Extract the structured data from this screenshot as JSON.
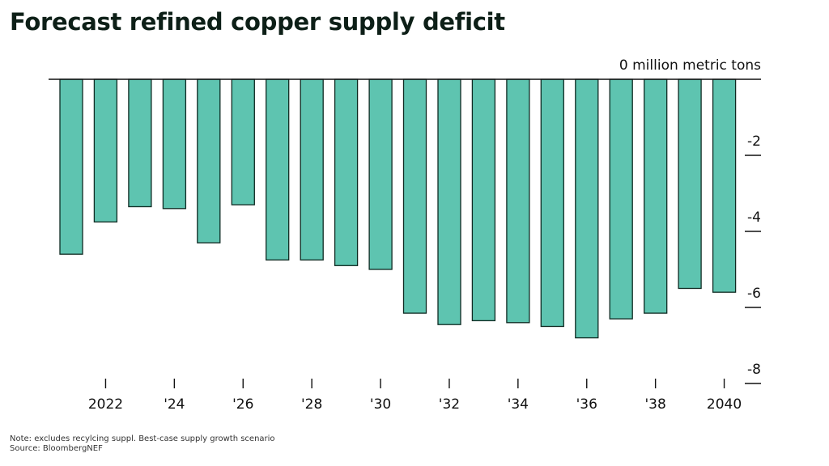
{
  "title": "Forecast refined copper supply deficit",
  "note": "Note: excludes recylcing suppl. Best-case supply growth scenario",
  "source": "Source: BloombergNEF",
  "colors": {
    "bar_fill": "#5ec4b0",
    "bar_stroke": "#0f2a22",
    "axis": "#111111",
    "text": "#111111"
  },
  "chart_data": {
    "type": "bar",
    "title": "Forecast refined copper supply deficit",
    "unit_label": "0 million metric tons",
    "categories": [
      "2021",
      "2022",
      "2023",
      "2024",
      "2025",
      "2026",
      "2027",
      "2028",
      "2029",
      "2030",
      "2031",
      "2032",
      "2033",
      "2034",
      "2035",
      "2036",
      "2037",
      "2038",
      "2039",
      "2040"
    ],
    "values": [
      -4.6,
      -3.75,
      -3.35,
      -3.4,
      -4.3,
      -3.3,
      -4.75,
      -4.75,
      -4.9,
      -5.0,
      -6.15,
      -6.45,
      -6.35,
      -6.4,
      -6.5,
      -6.8,
      -6.3,
      -6.15,
      -5.5,
      -5.6
    ],
    "ylim": [
      -8,
      0
    ],
    "y_ticks": [
      {
        "value": -2,
        "label": "-2"
      },
      {
        "value": -4,
        "label": "-4"
      },
      {
        "value": -6,
        "label": "-6"
      },
      {
        "value": -8,
        "label": "-8"
      }
    ],
    "x_ticks": [
      {
        "category": "2022",
        "label": "2022"
      },
      {
        "category": "2024",
        "label": "'24"
      },
      {
        "category": "2026",
        "label": "'26"
      },
      {
        "category": "2028",
        "label": "'28"
      },
      {
        "category": "2030",
        "label": "'30"
      },
      {
        "category": "2032",
        "label": "'32"
      },
      {
        "category": "2034",
        "label": "'34"
      },
      {
        "category": "2036",
        "label": "'36"
      },
      {
        "category": "2038",
        "label": "'38"
      },
      {
        "category": "2040",
        "label": "2040"
      }
    ],
    "grid": false,
    "y_axis_position": "right"
  }
}
